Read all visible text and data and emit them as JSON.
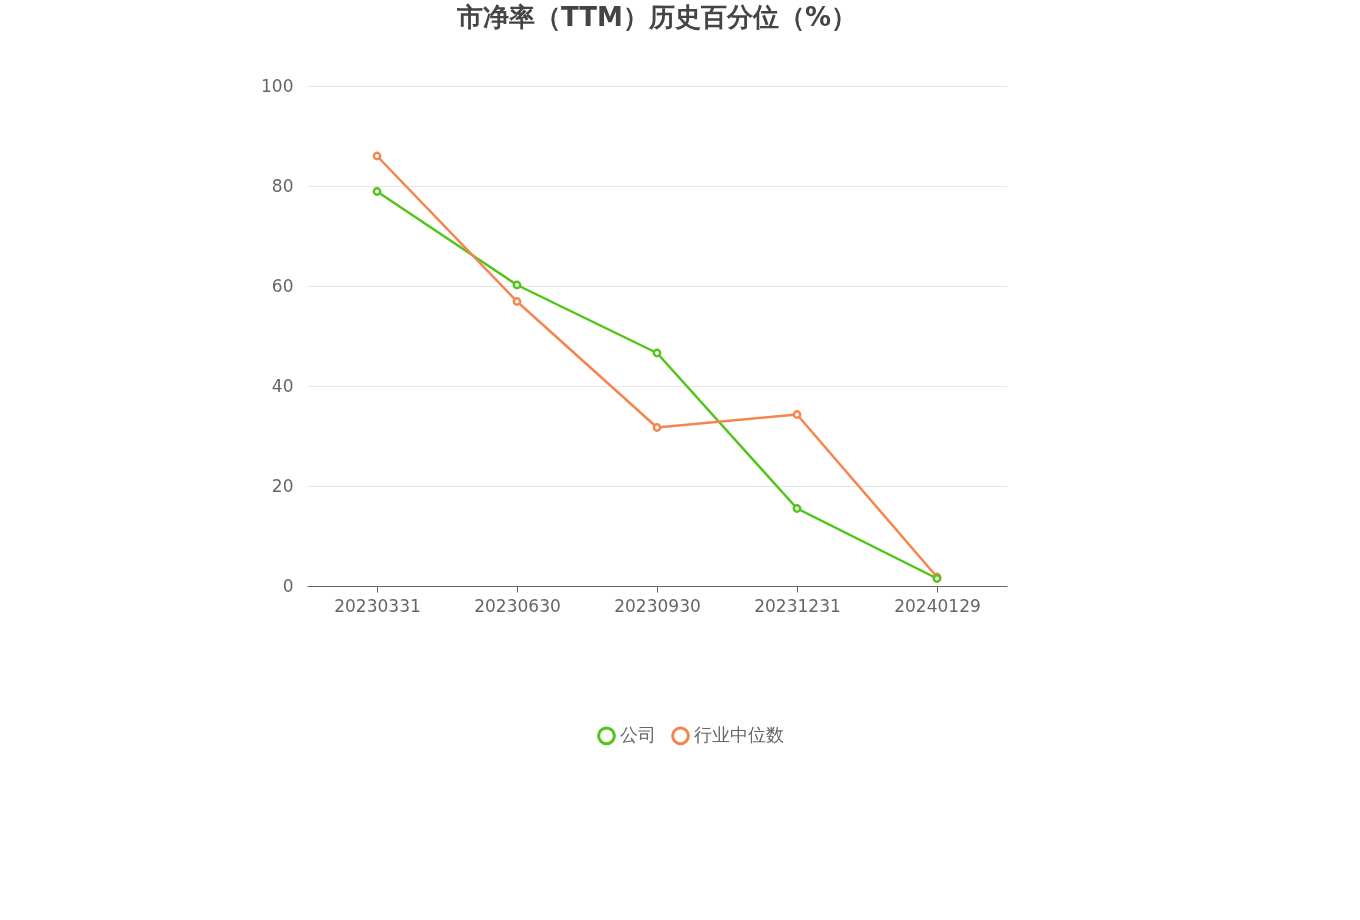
{
  "chart_data": {
    "type": "line",
    "title": "市净率（TTM）历史百分位（%）",
    "categories": [
      "20230331",
      "20230630",
      "20230930",
      "20231231",
      "20240129"
    ],
    "series": [
      {
        "name": "公司",
        "color": "#52c41a",
        "values": [
          78.9,
          60.2,
          46.6,
          15.5,
          1.5
        ]
      },
      {
        "name": "行业中位数",
        "color": "#f5854f",
        "values": [
          86.0,
          56.9,
          31.7,
          34.3,
          1.8
        ]
      }
    ],
    "ylim": [
      0,
      100
    ],
    "yticks": [
      0,
      20,
      40,
      60,
      80,
      100
    ],
    "grid": "y",
    "legend": "bottom",
    "marker": "circle",
    "line_style": "solid"
  }
}
